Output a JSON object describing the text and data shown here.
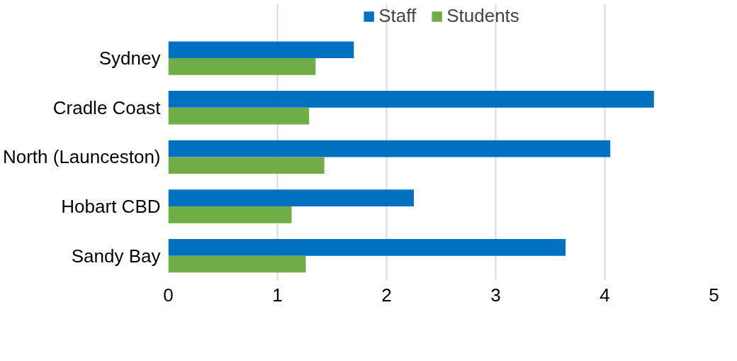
{
  "chart_data": {
    "type": "bar",
    "orientation": "horizontal",
    "categories": [
      "Sydney",
      "Cradle Coast",
      "North (Launceston)",
      "Hobart CBD",
      "Sandy Bay"
    ],
    "series": [
      {
        "name": "Staff",
        "color": "#0070c0",
        "values": [
          1.7,
          4.45,
          4.05,
          2.25,
          3.64
        ]
      },
      {
        "name": "Students",
        "color": "#70ad47",
        "values": [
          1.35,
          1.29,
          1.43,
          1.13,
          1.26
        ]
      }
    ],
    "xlim": [
      0,
      5
    ],
    "xticks": [
      0,
      1,
      2,
      3,
      4,
      5
    ],
    "grid": "x",
    "legend": "top"
  }
}
